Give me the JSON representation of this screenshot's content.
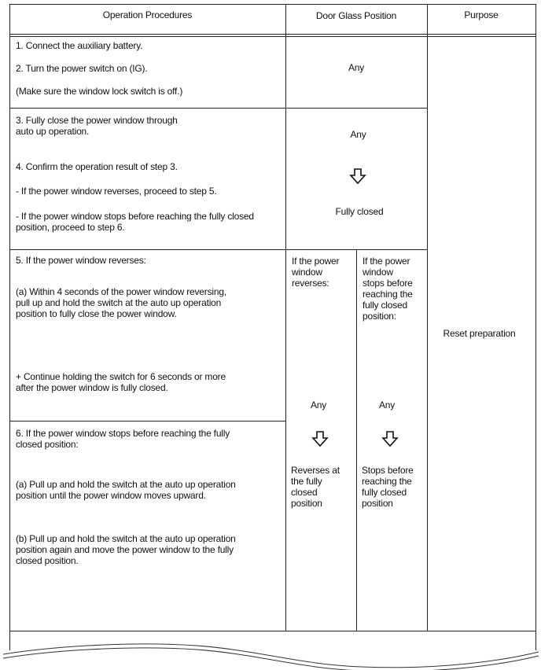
{
  "header": {
    "procedures": "Operation Procedures",
    "position": "Door Glass Position",
    "purpose": "Purpose"
  },
  "rows": [
    {
      "steps": [
        "1. Connect the auxiliary battery.",
        "2. Turn the power switch on (IG).",
        "(Make sure the window lock switch is off.)"
      ],
      "position": "Any"
    },
    {
      "steps": [
        "3. Fully close the power window through",
        "auto up operation.",
        "4. Confirm the operation result of step 3.",
        "- If the power window reverses, proceed to step 5.",
        "- If the power window stops before reaching the fully closed",
        "position, proceed to step 6."
      ],
      "position_from": "Any",
      "position_to": "Fully closed"
    },
    {
      "steps": [
        "5. If the power window reverses:",
        "(a) Within 4 seconds of the power window reversing,",
        "pull up and hold the switch at the auto up operation",
        "position to fully close the power window.",
        "+ Continue holding the switch for 6 seconds or more",
        "after the power window is fully closed."
      ]
    },
    {
      "steps": [
        "6. If the power window stops before reaching the fully",
        "closed position:",
        "(a) Pull up and hold the switch at the auto up operation",
        "position until the power window moves upward.",
        "(b) Pull up and hold the switch at the auto up operation",
        "position again and move the power window to the fully",
        "closed position."
      ]
    }
  ],
  "split": {
    "left": {
      "head": [
        "If the power",
        "window",
        "reverses:"
      ],
      "from": "Any",
      "to": [
        "Reverses at",
        "the fully",
        "closed",
        "position"
      ]
    },
    "right": {
      "head": [
        "If the power",
        "window",
        "stops before",
        "reaching the",
        "fully closed",
        "position:"
      ],
      "from": "Any",
      "to": [
        "Stops before",
        "reaching the",
        "fully closed",
        "position"
      ]
    }
  },
  "purpose": "Reset preparation",
  "icons": {
    "arrow": "down-arrow-outline-icon"
  }
}
